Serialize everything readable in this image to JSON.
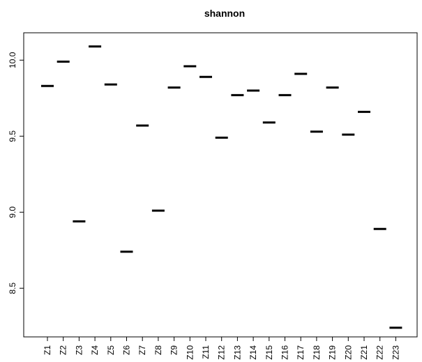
{
  "chart_data": {
    "type": "scatter",
    "title": "shannon",
    "xlabel": "",
    "ylabel": "",
    "grid": false,
    "legend": "none",
    "categories": [
      "Z1",
      "Z2",
      "Z3",
      "Z4",
      "Z5",
      "Z6",
      "Z7",
      "Z8",
      "Z9",
      "Z10",
      "Z11",
      "Z12",
      "Z13",
      "Z14",
      "Z15",
      "Z16",
      "Z17",
      "Z18",
      "Z19",
      "Z20",
      "Z21",
      "Z22",
      "Z23"
    ],
    "values": [
      9.83,
      9.99,
      8.94,
      10.09,
      9.84,
      8.74,
      9.57,
      9.01,
      9.82,
      9.96,
      9.89,
      9.49,
      9.77,
      9.8,
      9.59,
      9.77,
      9.91,
      9.53,
      9.82,
      9.51,
      9.66,
      8.89,
      8.24
    ],
    "ylim": [
      8.18,
      10.18
    ],
    "yticks": [
      8.5,
      9.0,
      9.5,
      10.0
    ],
    "ytick_labels": [
      "8.5",
      "9.0",
      "9.5",
      "10.0"
    ],
    "mark_color": "#000000"
  }
}
